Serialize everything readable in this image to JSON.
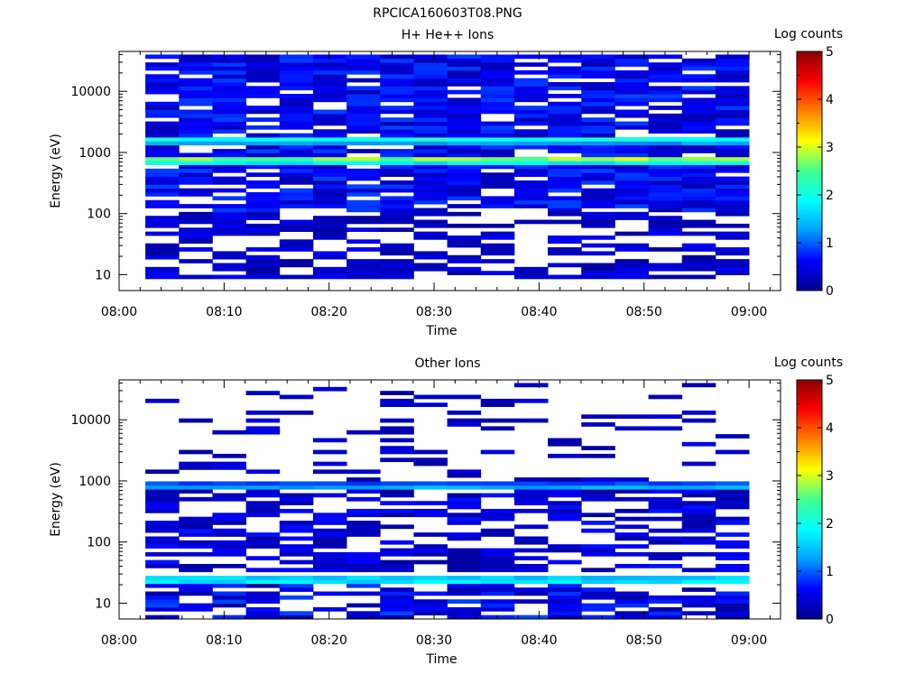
{
  "figure_title": "RPCICA160603T08.PNG",
  "colors": {
    "colormap": [
      "#00008c",
      "#0000ff",
      "#00a0ff",
      "#00ffff",
      "#40ff90",
      "#ffff00",
      "#ff8000",
      "#ff0000",
      "#8b0000"
    ],
    "axis": "#000000",
    "background": "#ffffff"
  },
  "chart_data": [
    {
      "type": "heatmap",
      "title": "H+ He++ Ions",
      "xlabel": "Time",
      "ylabel": "Energy (eV)",
      "colorbar_label": "Log counts",
      "colorbar_ticks": [
        "0",
        "1",
        "2",
        "3",
        "4",
        "5"
      ],
      "colorbar_range": [
        0,
        5
      ],
      "x_ticks": [
        "08:00",
        "08:10",
        "08:20",
        "08:30",
        "08:40",
        "08:50",
        "09:00"
      ],
      "x_range": [
        "08:00",
        "09:03"
      ],
      "x_data_range": [
        "08:02.5",
        "09:00"
      ],
      "time_bins": 18,
      "y_ticks": [
        "10",
        "100",
        "1000",
        "10000"
      ],
      "y_scale": "log",
      "y_range": [
        5.5,
        45000
      ],
      "y_data_range": [
        5.5,
        40000
      ],
      "energy_bins": 60,
      "grid": false,
      "features": [
        {
          "description": "dense background",
          "energy_range_eV": [
            100,
            40000
          ],
          "log_counts_range": [
            0.2,
            0.9
          ],
          "fill_fraction": 0.85
        },
        {
          "description": "main peak",
          "energy_eV": 760,
          "log_counts": 2.9
        },
        {
          "description": "secondary band",
          "energy_eV": 1600,
          "log_counts": 2.1
        },
        {
          "description": "sparse low energies",
          "energy_range_eV": [
            8,
            100
          ],
          "log_counts_range": [
            0.1,
            0.6
          ],
          "fill_fraction": 0.6
        }
      ]
    },
    {
      "type": "heatmap",
      "title": "Other Ions",
      "xlabel": "Time",
      "ylabel": "Energy (eV)",
      "colorbar_label": "Log counts",
      "colorbar_ticks": [
        "0",
        "1",
        "2",
        "3",
        "4",
        "5"
      ],
      "colorbar_range": [
        0,
        5
      ],
      "x_ticks": [
        "08:00",
        "08:10",
        "08:20",
        "08:30",
        "08:40",
        "08:50",
        "09:00"
      ],
      "x_range": [
        "08:00",
        "09:03"
      ],
      "x_data_range": [
        "08:02.5",
        "09:00"
      ],
      "time_bins": 18,
      "y_ticks": [
        "10",
        "100",
        "1000",
        "10000"
      ],
      "y_scale": "log",
      "y_range": [
        5.5,
        45000
      ],
      "y_data_range": [
        5.5,
        40000
      ],
      "energy_bins": 60,
      "grid": false,
      "features": [
        {
          "description": "sparse high energies",
          "energy_range_eV": [
            1000,
            40000
          ],
          "log_counts_range": [
            0.1,
            0.5
          ],
          "fill_fraction": 0.15
        },
        {
          "description": "band",
          "energy_eV": 820,
          "log_counts": 1.4
        },
        {
          "description": "mid energies",
          "energy_range_eV": [
            35,
            700
          ],
          "log_counts_range": [
            0.1,
            0.7
          ],
          "fill_fraction": 0.6
        },
        {
          "description": "main peak",
          "energy_eV": 24,
          "log_counts": 2.0
        },
        {
          "description": "low energies",
          "energy_range_eV": [
            5.5,
            20
          ],
          "log_counts_range": [
            0.1,
            0.9
          ],
          "fill_fraction": 0.7
        }
      ]
    }
  ]
}
